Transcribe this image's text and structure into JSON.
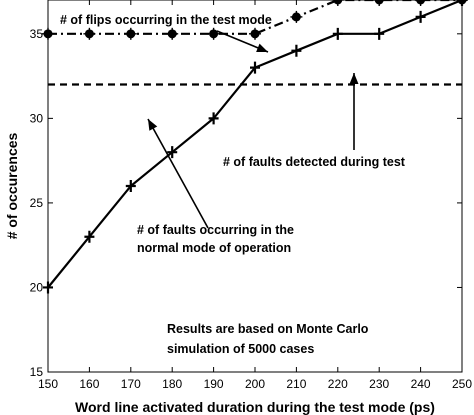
{
  "chart_data": {
    "type": "line",
    "xlabel": "Word line activated duration during the test mode (ps)",
    "ylabel": "# of occurences",
    "xlim": [
      150,
      250
    ],
    "ylim": [
      15,
      37
    ],
    "xticks": [
      150,
      160,
      170,
      180,
      190,
      200,
      210,
      220,
      230,
      240,
      250
    ],
    "yticks": [
      15,
      20,
      25,
      30,
      35
    ],
    "grid": false,
    "x": [
      150,
      160,
      170,
      180,
      190,
      200,
      210,
      220,
      230,
      240,
      250
    ],
    "series": [
      {
        "name": "# of flips occurring in the test mode",
        "style": "dash-dot",
        "marker": "circle",
        "values": [
          35,
          35,
          35,
          35,
          35,
          35,
          36,
          37,
          37,
          37,
          37
        ]
      },
      {
        "name": "# of faults detected during test",
        "style": "dashed",
        "marker": "none",
        "values": [
          32,
          32,
          32,
          32,
          32,
          32,
          32,
          32,
          32,
          32,
          32
        ]
      },
      {
        "name": "# of faults occurring in the normal mode of operation",
        "style": "solid",
        "marker": "plus",
        "values": [
          20,
          23,
          26,
          28,
          30,
          33,
          34,
          35,
          35,
          36,
          37
        ]
      }
    ],
    "annotations": [
      "# of flips occurring in the test mode",
      "# of faults detected during test",
      "# of faults occurring in the",
      "normal mode of operation",
      "Results are based on Monte Carlo",
      "simulation of 5000 cases"
    ]
  }
}
